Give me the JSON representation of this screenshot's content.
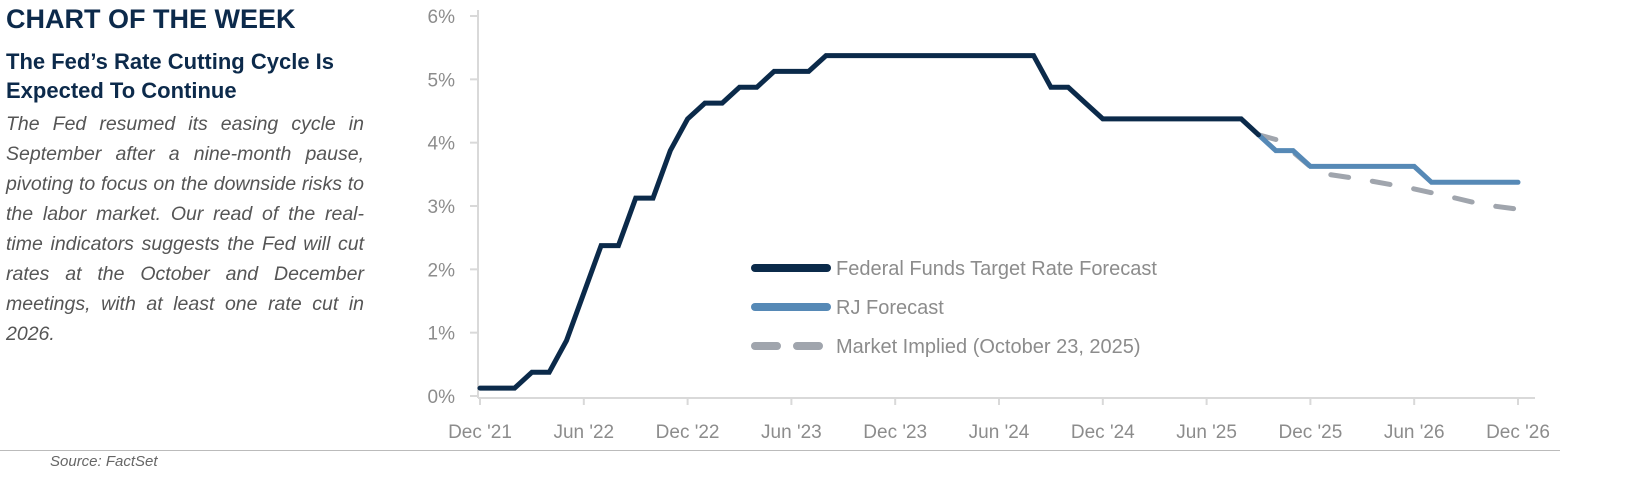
{
  "header": {
    "kicker": "CHART OF THE WEEK",
    "title": "The Fed’s Rate Cutting Cycle Is Expected To Continue",
    "body": "The Fed resumed its easing cycle in September after a nine-month pause, pivoting to focus on the downside risks to the labor market. Our read of the real-time indicators suggests the Fed will cut rates at the October and December meetings, with at least one rate cut in 2026."
  },
  "source": "Source: FactSet",
  "chart_data": {
    "type": "line",
    "title": "",
    "xlabel": "",
    "ylabel": "",
    "ylim": [
      0,
      6
    ],
    "y_ticks": [
      "0%",
      "1%",
      "2%",
      "3%",
      "4%",
      "5%",
      "6%"
    ],
    "x_ticks": [
      "Dec '21",
      "Jun '22",
      "Dec '22",
      "Jun '23",
      "Dec '23",
      "Jun '24",
      "Dec '24",
      "Jun '25",
      "Dec '25",
      "Jun '26",
      "Dec '26"
    ],
    "x_range": [
      "2021-12",
      "2026-12"
    ],
    "grid": false,
    "legend_position": "center",
    "series": [
      {
        "name": "Federal Funds Target Rate Forecast",
        "color": "#0b2a4a",
        "style": "solid",
        "x": [
          "2021-12",
          "2022-01",
          "2022-02",
          "2022-03",
          "2022-04",
          "2022-05",
          "2022-06",
          "2022-07",
          "2022-08",
          "2022-09",
          "2022-10",
          "2022-11",
          "2022-12",
          "2023-01",
          "2023-02",
          "2023-03",
          "2023-04",
          "2023-05",
          "2023-06",
          "2023-07",
          "2023-08",
          "2024-08",
          "2024-09",
          "2024-10",
          "2024-11",
          "2024-12",
          "2025-08",
          "2025-09"
        ],
        "y": [
          0.125,
          0.125,
          0.125,
          0.375,
          0.375,
          0.875,
          1.625,
          2.375,
          2.375,
          3.125,
          3.125,
          3.875,
          4.375,
          4.625,
          4.625,
          4.875,
          4.875,
          5.125,
          5.125,
          5.125,
          5.375,
          5.375,
          4.875,
          4.875,
          4.625,
          4.375,
          4.375,
          4.125
        ]
      },
      {
        "name": "RJ Forecast",
        "color": "#5689b6",
        "style": "solid",
        "x": [
          "2025-09",
          "2025-10",
          "2025-11",
          "2025-12",
          "2026-06",
          "2026-07",
          "2026-12"
        ],
        "y": [
          4.125,
          3.875,
          3.875,
          3.625,
          3.625,
          3.375,
          3.375
        ]
      },
      {
        "name": "Market Implied (October 23, 2025)",
        "color": "#a0a5ad",
        "style": "dashed",
        "x": [
          "2025-09",
          "2025-10",
          "2025-11",
          "2025-12",
          "2026-01",
          "2026-03",
          "2026-06",
          "2026-08",
          "2026-10",
          "2026-12"
        ],
        "y": [
          4.125,
          4.05,
          3.85,
          3.62,
          3.5,
          3.42,
          3.27,
          3.15,
          3.02,
          2.95
        ]
      }
    ]
  }
}
